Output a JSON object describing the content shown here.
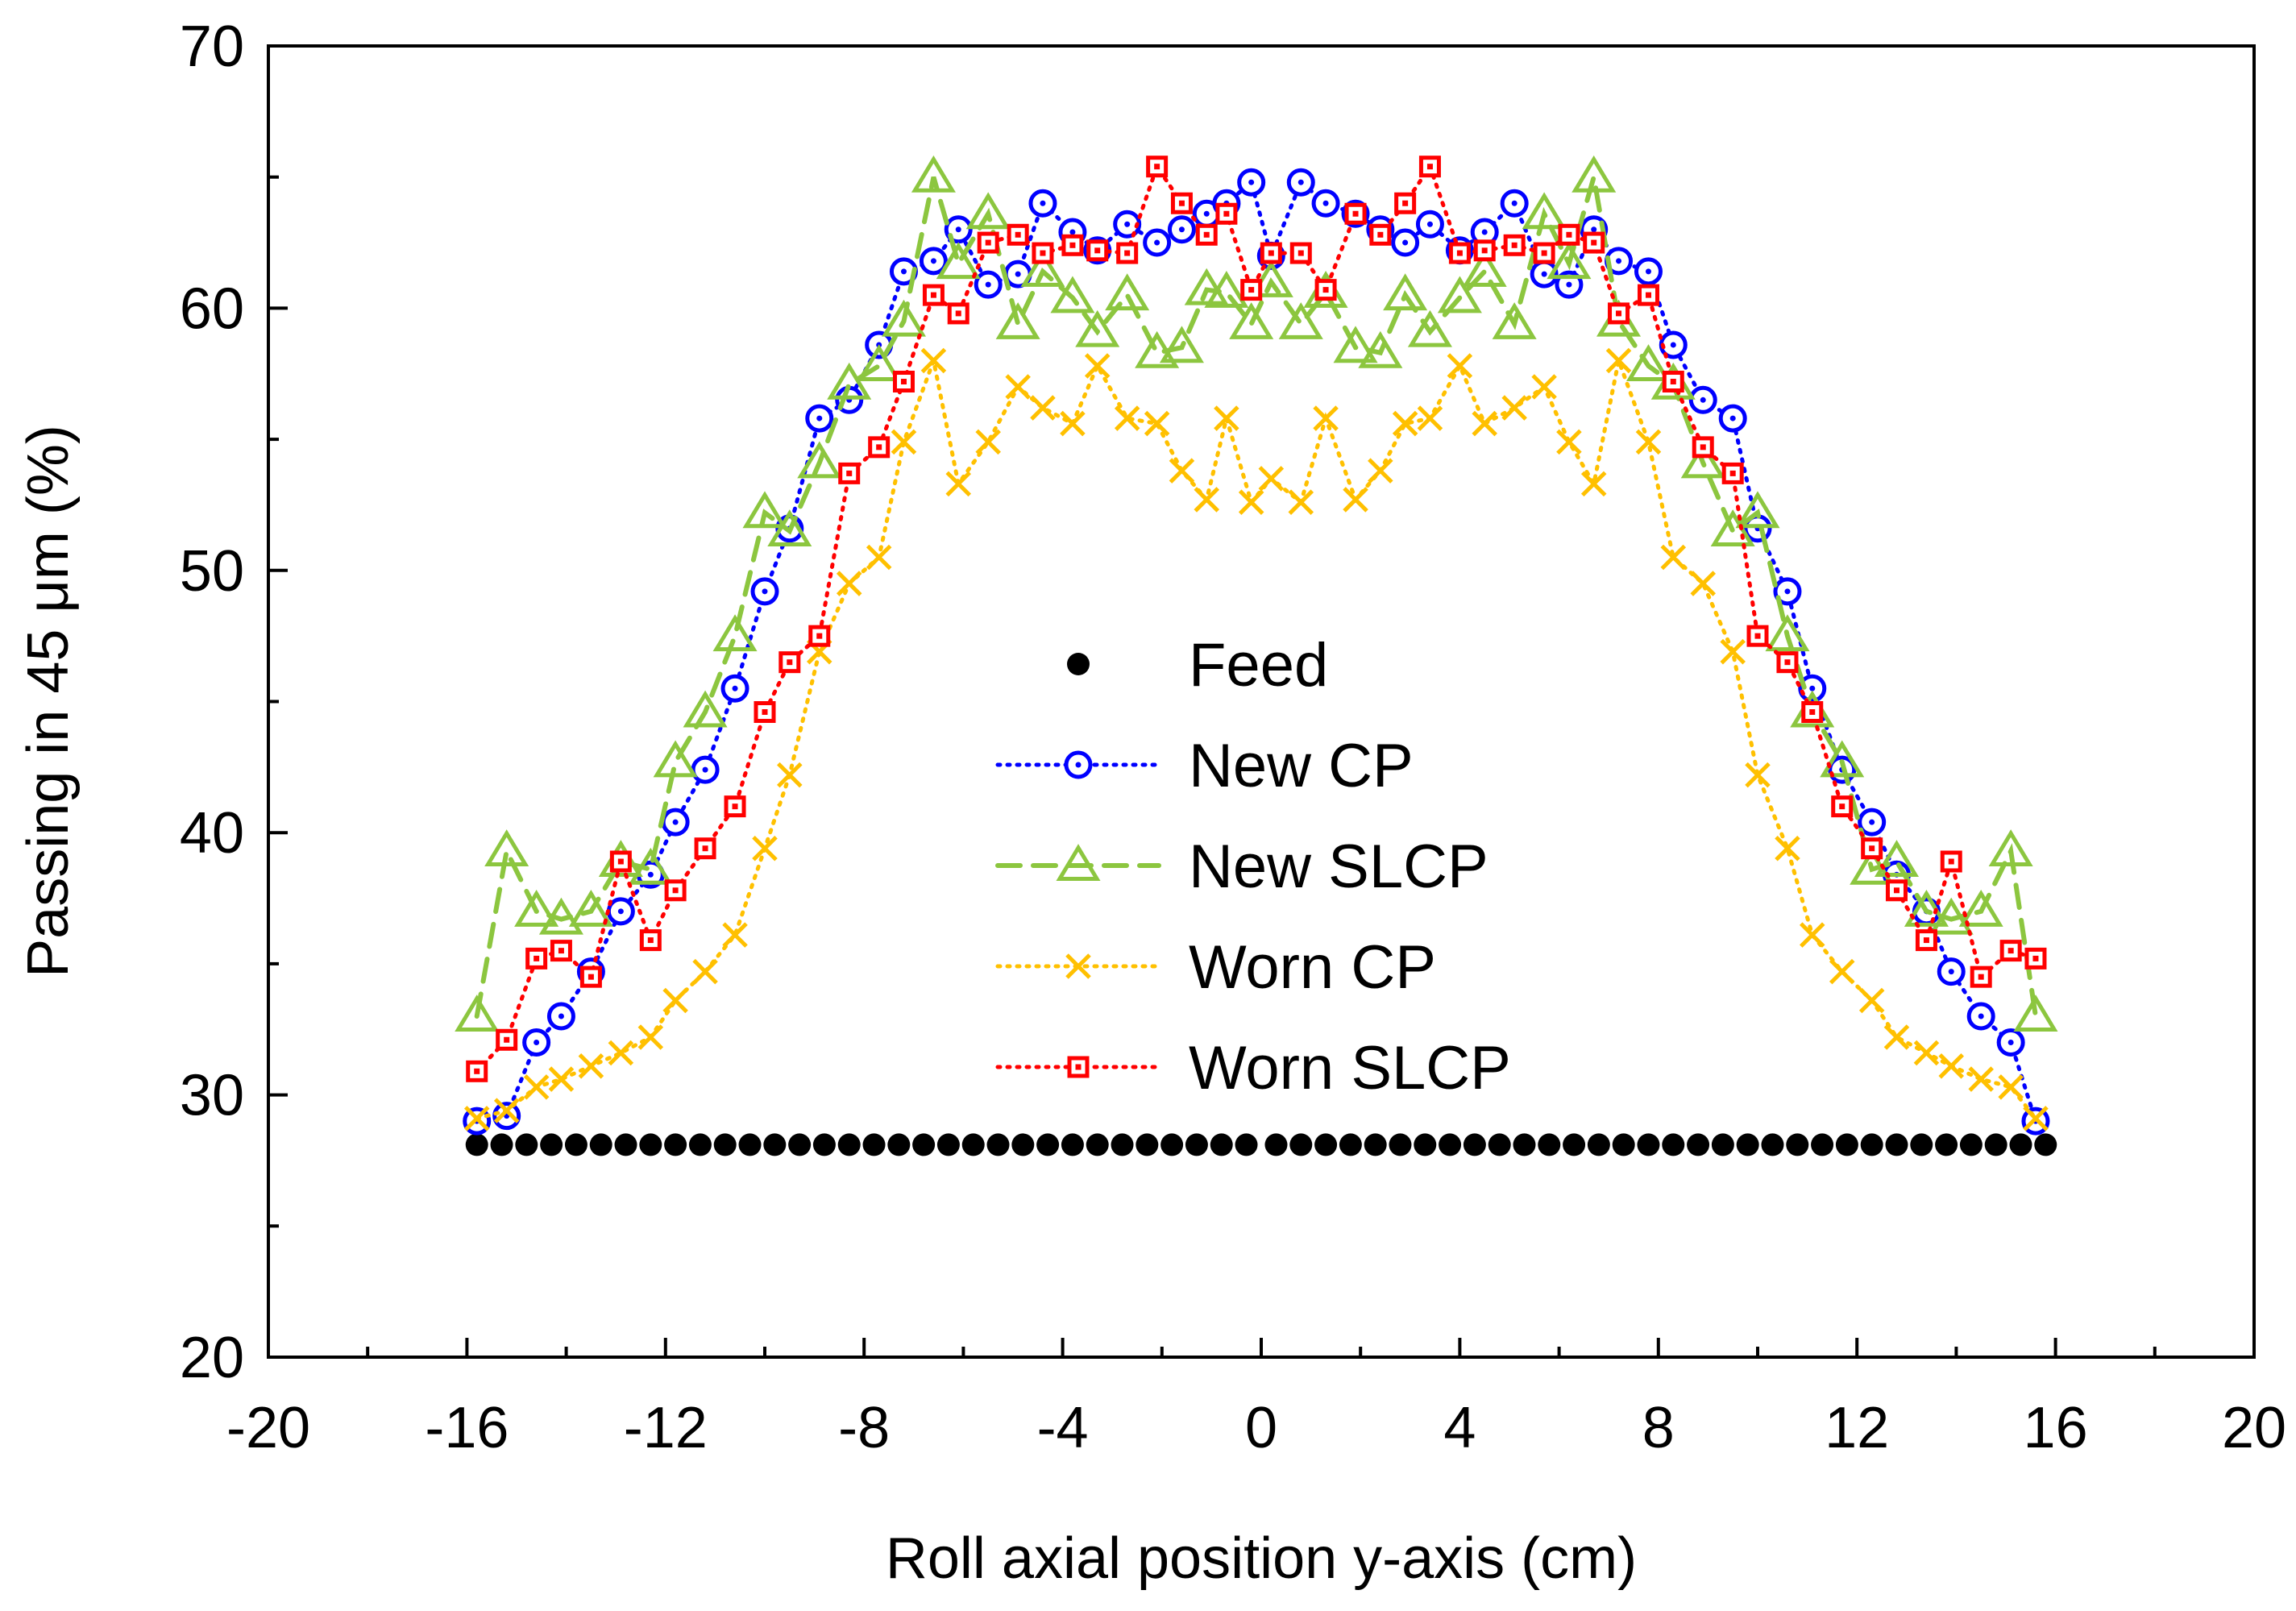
{
  "chart_data": {
    "type": "line",
    "title": "",
    "xlabel": "Roll axial position y-axis (cm)",
    "ylabel": "Passing in 45 μm (%)",
    "xlim": [
      -20,
      20
    ],
    "ylim": [
      20,
      70
    ],
    "x_ticks": [
      -20,
      -16,
      -12,
      -8,
      -4,
      0,
      4,
      8,
      12,
      16,
      20
    ],
    "x_tick_labels": [
      "-20",
      "-16",
      "-12",
      "-8",
      "-4",
      "0",
      "4",
      "8",
      "12",
      "16",
      "20"
    ],
    "y_ticks": [
      20,
      30,
      40,
      50,
      60,
      70
    ],
    "y_tick_labels": [
      "20",
      "30",
      "40",
      "50",
      "60",
      "70"
    ],
    "x_minor_step": 2,
    "y_minor_step": 5,
    "grid": false,
    "legend_position": "center",
    "series": [
      {
        "name": "Feed",
        "color": "#000000",
        "marker": "filled-circle",
        "line": "none",
        "x": [
          -15.8,
          -15.3,
          -14.8,
          -14.3,
          -13.8,
          -13.3,
          -12.8,
          -12.3,
          -11.8,
          -11.3,
          -10.8,
          -10.3,
          -9.8,
          -9.3,
          -8.8,
          -8.3,
          -7.8,
          -7.3,
          -6.8,
          -6.3,
          -5.8,
          -5.3,
          -4.8,
          -4.3,
          -3.8,
          -3.3,
          -2.8,
          -2.3,
          -1.8,
          -1.3,
          -0.8,
          -0.3,
          0.3,
          0.8,
          1.3,
          1.8,
          2.3,
          2.8,
          3.3,
          3.8,
          4.3,
          4.8,
          5.3,
          5.8,
          6.3,
          6.8,
          7.3,
          7.8,
          8.3,
          8.8,
          9.3,
          9.8,
          10.3,
          10.8,
          11.3,
          11.8,
          12.3,
          12.8,
          13.3,
          13.8,
          14.3,
          14.8,
          15.3,
          15.8
        ],
        "y": [
          28.1,
          28.1,
          28.1,
          28.1,
          28.1,
          28.1,
          28.1,
          28.1,
          28.1,
          28.1,
          28.1,
          28.1,
          28.1,
          28.1,
          28.1,
          28.1,
          28.1,
          28.1,
          28.1,
          28.1,
          28.1,
          28.1,
          28.1,
          28.1,
          28.1,
          28.1,
          28.1,
          28.1,
          28.1,
          28.1,
          28.1,
          28.1,
          28.1,
          28.1,
          28.1,
          28.1,
          28.1,
          28.1,
          28.1,
          28.1,
          28.1,
          28.1,
          28.1,
          28.1,
          28.1,
          28.1,
          28.1,
          28.1,
          28.1,
          28.1,
          28.1,
          28.1,
          28.1,
          28.1,
          28.1,
          28.1,
          28.1,
          28.1,
          28.1,
          28.1,
          28.1,
          28.1,
          28.1,
          28.1
        ]
      },
      {
        "name": "New CP",
        "color": "#0000ff",
        "marker": "dotted-circle",
        "line": "dotted",
        "x": [
          -15.8,
          -15.2,
          -14.6,
          -14.1,
          -13.5,
          -12.9,
          -12.3,
          -11.8,
          -11.2,
          -10.6,
          -10.0,
          -9.5,
          -8.9,
          -8.3,
          -7.7,
          -7.2,
          -6.6,
          -6.1,
          -5.5,
          -4.9,
          -4.4,
          -3.8,
          -3.3,
          -2.7,
          -2.1,
          -1.6,
          -1.1,
          -0.7,
          -0.2,
          0.2,
          0.8,
          1.3,
          1.9,
          2.4,
          2.9,
          3.4,
          4.0,
          4.5,
          5.1,
          5.7,
          6.2,
          6.7,
          7.2,
          7.8,
          8.3,
          8.9,
          9.5,
          10.0,
          10.6,
          11.1,
          11.7,
          12.3,
          12.8,
          13.4,
          13.9,
          14.5,
          15.1,
          15.6
        ],
        "y": [
          29.0,
          29.2,
          32.0,
          33.0,
          34.7,
          37.0,
          38.4,
          40.4,
          42.4,
          45.5,
          49.2,
          51.6,
          55.8,
          56.5,
          58.6,
          61.4,
          61.8,
          63.0,
          60.9,
          61.3,
          64.0,
          62.9,
          62.2,
          63.2,
          62.5,
          63.0,
          63.6,
          64.0,
          64.8,
          62.0,
          64.8,
          64.0,
          63.6,
          63.0,
          62.5,
          63.2,
          62.2,
          62.9,
          64.0,
          61.3,
          60.9,
          63.0,
          61.8,
          61.4,
          58.6,
          56.5,
          55.8,
          51.6,
          49.2,
          45.5,
          42.4,
          40.4,
          38.4,
          37.0,
          34.7,
          33.0,
          32.0,
          29.0
        ]
      },
      {
        "name": "New SLCP",
        "color": "#8cc63f",
        "marker": "open-triangle",
        "line": "dashed",
        "x": [
          -15.8,
          -15.2,
          -14.6,
          -14.1,
          -13.5,
          -12.9,
          -12.3,
          -11.8,
          -11.2,
          -10.6,
          -10.0,
          -9.5,
          -8.9,
          -8.3,
          -7.7,
          -7.2,
          -6.6,
          -6.1,
          -5.5,
          -4.9,
          -4.4,
          -3.8,
          -3.3,
          -2.7,
          -2.1,
          -1.6,
          -1.1,
          -0.7,
          -0.2,
          0.2,
          0.8,
          1.3,
          1.9,
          2.4,
          2.9,
          3.4,
          4.0,
          4.5,
          5.1,
          5.7,
          6.2,
          6.7,
          7.2,
          7.8,
          8.3,
          8.9,
          9.5,
          10.0,
          10.6,
          11.1,
          11.7,
          12.3,
          12.8,
          13.4,
          13.9,
          14.5,
          15.1,
          15.6
        ],
        "y": [
          33.0,
          39.3,
          37.0,
          36.7,
          37.0,
          38.9,
          38.6,
          42.7,
          44.6,
          47.5,
          52.2,
          51.5,
          54.1,
          57.1,
          57.8,
          59.5,
          65.0,
          61.7,
          63.6,
          59.4,
          61.4,
          60.4,
          59.1,
          60.5,
          58.3,
          58.5,
          60.7,
          60.6,
          59.4,
          61.0,
          59.4,
          60.6,
          58.5,
          58.3,
          60.5,
          59.1,
          60.4,
          61.4,
          59.4,
          63.6,
          61.7,
          65.0,
          59.5,
          57.8,
          57.1,
          54.1,
          51.5,
          52.2,
          47.5,
          44.6,
          42.7,
          38.6,
          38.9,
          37.0,
          36.7,
          37.0,
          39.3,
          33.0
        ]
      },
      {
        "name": "Worn CP",
        "color": "#ffc000",
        "marker": "cross",
        "line": "dotted",
        "x": [
          -15.8,
          -15.2,
          -14.6,
          -14.1,
          -13.5,
          -12.9,
          -12.3,
          -11.8,
          -11.2,
          -10.6,
          -10.0,
          -9.5,
          -8.9,
          -8.3,
          -7.7,
          -7.2,
          -6.6,
          -6.1,
          -5.5,
          -4.9,
          -4.4,
          -3.8,
          -3.3,
          -2.7,
          -2.1,
          -1.6,
          -1.1,
          -0.7,
          -0.2,
          0.2,
          0.8,
          1.3,
          1.9,
          2.4,
          2.9,
          3.4,
          4.0,
          4.5,
          5.1,
          5.7,
          6.2,
          6.7,
          7.2,
          7.8,
          8.3,
          8.9,
          9.5,
          10.0,
          10.6,
          11.1,
          11.7,
          12.3,
          12.8,
          13.4,
          13.9,
          14.5,
          15.1,
          15.6
        ],
        "y": [
          29.1,
          29.4,
          30.3,
          30.6,
          31.1,
          31.6,
          32.2,
          33.6,
          34.7,
          36.1,
          39.4,
          42.2,
          46.9,
          49.5,
          50.5,
          54.9,
          58.0,
          53.3,
          54.9,
          57.0,
          56.2,
          55.6,
          57.8,
          55.8,
          55.6,
          53.8,
          52.7,
          55.8,
          52.6,
          53.5,
          52.6,
          55.8,
          52.7,
          53.8,
          55.6,
          55.8,
          57.8,
          55.6,
          56.2,
          57.0,
          54.9,
          53.3,
          58.0,
          54.9,
          50.5,
          49.5,
          46.9,
          42.2,
          39.4,
          36.1,
          34.7,
          33.6,
          32.2,
          31.6,
          31.1,
          30.6,
          30.3,
          29.1
        ]
      },
      {
        "name": "Worn SLCP",
        "color": "#ff0000",
        "marker": "dotted-square",
        "line": "dotted",
        "x": [
          -15.8,
          -15.2,
          -14.6,
          -14.1,
          -13.5,
          -12.9,
          -12.3,
          -11.8,
          -11.2,
          -10.6,
          -10.0,
          -9.5,
          -8.9,
          -8.3,
          -7.7,
          -7.2,
          -6.6,
          -6.1,
          -5.5,
          -4.9,
          -4.4,
          -3.8,
          -3.3,
          -2.7,
          -2.1,
          -1.6,
          -1.1,
          -0.7,
          -0.2,
          0.2,
          0.8,
          1.3,
          1.9,
          2.4,
          2.9,
          3.4,
          4.0,
          4.5,
          5.1,
          5.7,
          6.2,
          6.7,
          7.2,
          7.8,
          8.3,
          8.9,
          9.5,
          10.0,
          10.6,
          11.1,
          11.7,
          12.3,
          12.8,
          13.4,
          13.9,
          14.5,
          15.1,
          15.6
        ],
        "y": [
          30.9,
          32.1,
          35.2,
          35.5,
          34.5,
          38.9,
          35.9,
          37.8,
          39.4,
          41.0,
          44.6,
          46.5,
          47.5,
          53.7,
          54.7,
          57.2,
          60.5,
          59.8,
          62.5,
          62.8,
          62.1,
          62.4,
          62.2,
          62.1,
          65.4,
          64.0,
          62.8,
          63.6,
          60.7,
          62.1,
          62.1,
          60.7,
          63.6,
          62.8,
          64.0,
          65.4,
          62.1,
          62.2,
          62.4,
          62.1,
          62.8,
          62.5,
          59.8,
          60.5,
          57.2,
          54.7,
          53.7,
          47.5,
          46.5,
          44.6,
          41.0,
          39.4,
          37.8,
          35.9,
          38.9,
          34.5,
          35.5,
          35.2
        ]
      }
    ]
  }
}
